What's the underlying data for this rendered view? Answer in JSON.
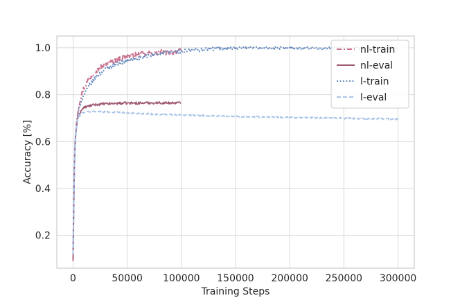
{
  "chart_data": {
    "type": "line",
    "xlabel": "Training Steps",
    "ylabel": "Accuracy [%]",
    "xlim": [
      -15000,
      315000
    ],
    "ylim": [
      0.06,
      1.05
    ],
    "xticks": [
      0,
      50000,
      100000,
      150000,
      200000,
      250000,
      300000
    ],
    "xtick_labels": [
      "0",
      "50000",
      "100000",
      "150000",
      "200000",
      "250000",
      "300000"
    ],
    "yticks": [
      0.2,
      0.4,
      0.6,
      0.8,
      1.0
    ],
    "ytick_labels": [
      "0.2",
      "0.4",
      "0.6",
      "0.8",
      "1.0"
    ],
    "grid": true,
    "legend_position": "top-right",
    "series": [
      {
        "name": "nl-train",
        "color": "#c96f8e",
        "dash": "dashdot",
        "noise": 0.012,
        "x": [
          0,
          1000,
          2000,
          4000,
          6000,
          8000,
          10000,
          15000,
          20000,
          30000,
          40000,
          50000,
          60000,
          70000,
          80000,
          90000,
          100000
        ],
        "y": [
          0.09,
          0.45,
          0.62,
          0.72,
          0.77,
          0.8,
          0.83,
          0.87,
          0.9,
          0.93,
          0.95,
          0.965,
          0.97,
          0.975,
          0.98,
          0.982,
          0.985
        ]
      },
      {
        "name": "nl-eval",
        "color": "#9e5a73",
        "dash": "solid",
        "noise": 0.005,
        "x": [
          0,
          1000,
          2000,
          4000,
          6000,
          8000,
          10000,
          15000,
          20000,
          30000,
          40000,
          50000,
          60000,
          70000,
          80000,
          90000,
          100000
        ],
        "y": [
          0.1,
          0.45,
          0.62,
          0.69,
          0.72,
          0.735,
          0.745,
          0.752,
          0.757,
          0.761,
          0.763,
          0.764,
          0.764,
          0.765,
          0.765,
          0.765,
          0.765
        ]
      },
      {
        "name": "l-train",
        "color": "#6a8ebf",
        "dash": "dotted",
        "noise": 0.008,
        "x": [
          0,
          1000,
          2000,
          4000,
          6000,
          8000,
          10000,
          15000,
          20000,
          30000,
          40000,
          50000,
          60000,
          80000,
          100000,
          120000,
          140000,
          160000,
          200000,
          250000,
          300000
        ],
        "y": [
          0.12,
          0.45,
          0.6,
          0.7,
          0.75,
          0.78,
          0.8,
          0.84,
          0.87,
          0.91,
          0.93,
          0.945,
          0.955,
          0.975,
          0.985,
          0.993,
          0.998,
          1.0,
          1.0,
          1.0,
          1.0
        ]
      },
      {
        "name": "l-eval",
        "color": "#a9c4e8",
        "dash": "dashed",
        "noise": 0.003,
        "x": [
          0,
          1000,
          2000,
          4000,
          6000,
          8000,
          10000,
          15000,
          20000,
          30000,
          40000,
          50000,
          60000,
          80000,
          100000,
          150000,
          200000,
          250000,
          300000
        ],
        "y": [
          0.12,
          0.45,
          0.62,
          0.69,
          0.71,
          0.72,
          0.725,
          0.728,
          0.728,
          0.727,
          0.725,
          0.722,
          0.72,
          0.716,
          0.713,
          0.707,
          0.703,
          0.699,
          0.696
        ]
      }
    ]
  }
}
